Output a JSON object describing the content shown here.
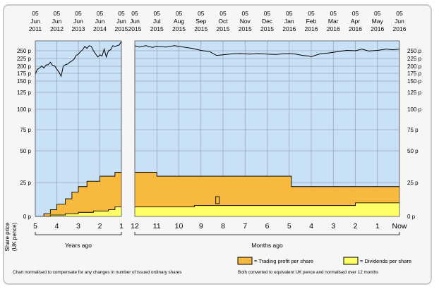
{
  "chart_data": {
    "type": "line",
    "ylabel": "Share price\n(UK pence)",
    "y_ticks": [
      0,
      25,
      50,
      75,
      100,
      125,
      150,
      175,
      200,
      225,
      250
    ],
    "y_tick_labels": [
      "0 p",
      "25 p",
      "50 p",
      "75 p",
      "100 p",
      "125 p",
      "150 p",
      "175 p",
      "200 p",
      "225 p",
      "250 p"
    ],
    "y_scale": "nonlinear",
    "left_panel": {
      "top_dates": [
        [
          "05",
          "Jun",
          "2011"
        ],
        [
          "05",
          "Jun",
          "2012"
        ],
        [
          "05",
          "Jun",
          "2013"
        ],
        [
          "05",
          "Jun",
          "2014"
        ],
        [
          "05",
          "Jun",
          "2015"
        ]
      ],
      "x_ticks": [
        "5",
        "4",
        "3",
        "2",
        "1"
      ],
      "xlabel": "Years ago",
      "price_series": [
        [
          5.0,
          162
        ],
        [
          4.9,
          170
        ],
        [
          4.8,
          172
        ],
        [
          4.7,
          176
        ],
        [
          4.6,
          172
        ],
        [
          4.5,
          179
        ],
        [
          4.4,
          180
        ],
        [
          4.3,
          188
        ],
        [
          4.2,
          178
        ],
        [
          4.1,
          176
        ],
        [
          4.0,
          170
        ],
        [
          3.9,
          165
        ],
        [
          3.8,
          158
        ],
        [
          3.7,
          175
        ],
        [
          3.6,
          180
        ],
        [
          3.5,
          182
        ],
        [
          3.4,
          188
        ],
        [
          3.3,
          192
        ],
        [
          3.2,
          198
        ],
        [
          3.1,
          210
        ],
        [
          3.0,
          214
        ],
        [
          2.9,
          222
        ],
        [
          2.8,
          228
        ],
        [
          2.7,
          238
        ],
        [
          2.6,
          232
        ],
        [
          2.5,
          240
        ],
        [
          2.4,
          238
        ],
        [
          2.3,
          225
        ],
        [
          2.2,
          215
        ],
        [
          2.1,
          205
        ],
        [
          2.0,
          212
        ],
        [
          1.9,
          208
        ],
        [
          1.8,
          230
        ],
        [
          1.7,
          205
        ],
        [
          1.6,
          225
        ],
        [
          1.5,
          228
        ],
        [
          1.4,
          240
        ],
        [
          1.3,
          238
        ],
        [
          1.2,
          240
        ],
        [
          1.1,
          242
        ],
        [
          1.0,
          252
        ]
      ],
      "trading_profit_per_share_steps": [
        [
          5.0,
          0
        ],
        [
          4.6,
          2
        ],
        [
          4.3,
          5
        ],
        [
          4.0,
          9
        ],
        [
          3.6,
          13
        ],
        [
          3.3,
          18
        ],
        [
          3.0,
          22
        ],
        [
          2.6,
          26
        ],
        [
          2.0,
          30
        ],
        [
          1.3,
          33
        ],
        [
          1.0,
          33
        ]
      ],
      "dividends_per_share_steps": [
        [
          5.0,
          0
        ],
        [
          4.3,
          1
        ],
        [
          3.6,
          2
        ],
        [
          3.0,
          3
        ],
        [
          2.3,
          4
        ],
        [
          1.6,
          5
        ],
        [
          1.3,
          7
        ],
        [
          1.0,
          7
        ]
      ]
    },
    "right_panel": {
      "top_dates": [
        [
          "05",
          "Jun",
          "2015"
        ],
        [
          "05",
          "Jul",
          "2015"
        ],
        [
          "05",
          "Aug",
          "2015"
        ],
        [
          "05",
          "Sep",
          "2015"
        ],
        [
          "05",
          "Oct",
          "2015"
        ],
        [
          "05",
          "Nov",
          "2015"
        ],
        [
          "05",
          "Dec",
          "2015"
        ],
        [
          "05",
          "Jan",
          "2016"
        ],
        [
          "05",
          "Feb",
          "2016"
        ],
        [
          "05",
          "Mar",
          "2016"
        ],
        [
          "05",
          "Apr",
          "2016"
        ],
        [
          "05",
          "May",
          "2016"
        ],
        [
          "05",
          "Jun",
          "2016"
        ]
      ],
      "x_ticks": [
        "12",
        "11",
        "10",
        "9",
        "8",
        "7",
        "6",
        "5",
        "4",
        "3",
        "2",
        "1",
        "Now"
      ],
      "xlabel": "Months ago",
      "price_series": [
        [
          12.0,
          240
        ],
        [
          11.8,
          236
        ],
        [
          11.5,
          240
        ],
        [
          11.2,
          235
        ],
        [
          11.0,
          238
        ],
        [
          10.6,
          236
        ],
        [
          10.2,
          240
        ],
        [
          9.8,
          236
        ],
        [
          9.4,
          232
        ],
        [
          9.0,
          226
        ],
        [
          8.6,
          222
        ],
        [
          8.3,
          210
        ],
        [
          8.0,
          212
        ],
        [
          7.6,
          215
        ],
        [
          7.2,
          216
        ],
        [
          6.8,
          214
        ],
        [
          6.4,
          216
        ],
        [
          6.0,
          214
        ],
        [
          5.6,
          213
        ],
        [
          5.3,
          215
        ],
        [
          5.0,
          216
        ],
        [
          4.7,
          214
        ],
        [
          4.4,
          210
        ],
        [
          4.1,
          208
        ],
        [
          4.0,
          206
        ],
        [
          3.6,
          215
        ],
        [
          3.2,
          218
        ],
        [
          2.8,
          222
        ],
        [
          2.4,
          226
        ],
        [
          2.0,
          225
        ],
        [
          1.7,
          230
        ],
        [
          1.4,
          224
        ],
        [
          1.0,
          226
        ],
        [
          0.6,
          230
        ],
        [
          0.3,
          228
        ],
        [
          0.0,
          230
        ]
      ],
      "trading_profit_per_share_steps": [
        [
          12.0,
          33
        ],
        [
          11.0,
          30
        ],
        [
          4.9,
          30
        ],
        [
          4.9,
          22
        ],
        [
          0.0,
          22
        ]
      ],
      "dividends_per_share_steps": [
        [
          12.0,
          7
        ],
        [
          9.3,
          7
        ],
        [
          9.3,
          8
        ],
        [
          2.0,
          8
        ],
        [
          2.0,
          10
        ],
        [
          0.0,
          10
        ]
      ],
      "marker": {
        "x": 8.25,
        "y": 12
      }
    },
    "legend": [
      {
        "name": "= Trading profit per share",
        "color": "#f7b93e"
      },
      {
        "name": "= Dividends per share",
        "color": "#ffff66"
      }
    ],
    "colors": {
      "price_area": "#c9e1f7",
      "grid": "#9aa4b0",
      "profit": "#f7b93e",
      "dividends": "#ffff66",
      "line": "#000000"
    }
  },
  "footer": {
    "left_note": "Chart normalised to compensate for any changes in number of issued ordinary shares",
    "right_note": "Both converted to equivalent UK pence and normalised over 12 months"
  }
}
